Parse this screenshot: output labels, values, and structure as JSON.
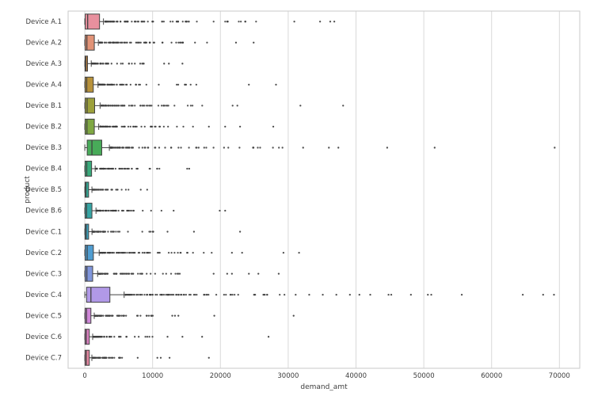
{
  "chart_data": {
    "type": "boxplot",
    "orientation": "horizontal",
    "xlabel": "demand_amt",
    "ylabel": "product",
    "xlim": [
      -2463,
      73000
    ],
    "xticks": [
      0,
      10000,
      20000,
      30000,
      40000,
      50000,
      60000,
      70000
    ],
    "grid": "vertical",
    "styles": {
      "background": "#ffffff",
      "grid_color": "#d9d9d9",
      "border_color": "#cacaca",
      "line_color": "#424242",
      "flier_color": "#3e3e3e",
      "tick_label_color": "#3d3d3d",
      "axis_label_color": "#3d3d3d"
    },
    "rows": [
      {
        "label": "Device A.1",
        "color": "#e8909e",
        "whisker_lo": 0,
        "q1": 60,
        "median": 420,
        "q3": 2170,
        "whisker_hi": 2750,
        "outliers_dense": {
          "from": 3000,
          "to": 16000,
          "n": 75
        },
        "outliers_sparse": {
          "from": 16500,
          "to": 25500,
          "n": 11
        },
        "outliers_far": [
          30900,
          34700,
          36200,
          36800
        ]
      },
      {
        "label": "Device A.2",
        "color": "#e29377",
        "whisker_lo": 0,
        "q1": 50,
        "median": 300,
        "q3": 1400,
        "whisker_hi": 2000,
        "outliers_dense": {
          "from": 2200,
          "to": 11500,
          "n": 65
        },
        "outliers_sparse": {
          "from": 12000,
          "to": 18800,
          "n": 10
        },
        "outliers_far": [
          22300,
          24900
        ]
      },
      {
        "label": "Device A.3",
        "color": "#cd8a40",
        "whisker_lo": 0,
        "q1": 30,
        "median": 160,
        "q3": 400,
        "whisker_hi": 950,
        "outliers_dense": {
          "from": 1050,
          "to": 3600,
          "n": 40
        },
        "outliers_sparse": {
          "from": 3800,
          "to": 8800,
          "n": 12
        },
        "outliers_far": [
          11700,
          12400,
          14400
        ]
      },
      {
        "label": "Device A.4",
        "color": "#b8923b",
        "whisker_lo": 0,
        "q1": 40,
        "median": 280,
        "q3": 1250,
        "whisker_hi": 1950,
        "outliers_dense": {
          "from": 2100,
          "to": 7000,
          "n": 55
        },
        "outliers_sparse": {
          "from": 7500,
          "to": 16600,
          "n": 14
        },
        "outliers_far": [
          24200,
          28200
        ]
      },
      {
        "label": "Device B.1",
        "color": "#9da13c",
        "whisker_lo": 0,
        "q1": 50,
        "median": 330,
        "q3": 1450,
        "whisker_hi": 2250,
        "outliers_dense": {
          "from": 2450,
          "to": 10300,
          "n": 65
        },
        "outliers_sparse": {
          "from": 10800,
          "to": 18800,
          "n": 13
        },
        "outliers_far": [
          21800,
          22500,
          31800,
          38100
        ]
      },
      {
        "label": "Device B.2",
        "color": "#7fa843",
        "whisker_lo": 0,
        "q1": 50,
        "median": 310,
        "q3": 1400,
        "whisker_hi": 2050,
        "outliers_dense": {
          "from": 2250,
          "to": 9000,
          "n": 60
        },
        "outliers_sparse": {
          "from": 9500,
          "to": 16000,
          "n": 13
        },
        "outliers_far": [
          18300,
          20700,
          22900,
          27800
        ]
      },
      {
        "label": "Device B.3",
        "color": "#48ab59",
        "whisker_lo": 0,
        "q1": 350,
        "median": 1050,
        "q3": 2500,
        "whisker_hi": 3620,
        "outliers_dense": {
          "from": 3800,
          "to": 9800,
          "n": 60
        },
        "outliers_sparse": {
          "from": 10300,
          "to": 30000,
          "n": 26
        },
        "outliers_far": [
          32200,
          36000,
          37400,
          44600,
          51600,
          69300
        ]
      },
      {
        "label": "Device B.4",
        "color": "#3aaa7b",
        "whisker_lo": 0,
        "q1": 40,
        "median": 280,
        "q3": 1000,
        "whisker_hi": 1530,
        "outliers_dense": {
          "from": 1700,
          "to": 7100,
          "n": 55
        },
        "outliers_sparse": {
          "from": 7600,
          "to": 11200,
          "n": 8
        },
        "outliers_far": [
          15100,
          15400
        ]
      },
      {
        "label": "Device B.5",
        "color": "#33a794",
        "whisker_lo": 0,
        "q1": 30,
        "median": 160,
        "q3": 560,
        "whisker_hi": 1050,
        "outliers_dense": {
          "from": 1200,
          "to": 3650,
          "n": 40
        },
        "outliers_sparse": {
          "from": 3900,
          "to": 7250,
          "n": 9
        },
        "outliers_far": [
          8250,
          9200
        ]
      },
      {
        "label": "Device B.6",
        "color": "#36a5a4",
        "whisker_lo": 0,
        "q1": 40,
        "median": 260,
        "q3": 1050,
        "whisker_hi": 1650,
        "outliers_dense": {
          "from": 1800,
          "to": 5800,
          "n": 55
        },
        "outliers_sparse": {
          "from": 6200,
          "to": 11500,
          "n": 11
        },
        "outliers_far": [
          13100,
          19900,
          20700
        ]
      },
      {
        "label": "Device C.1",
        "color": "#3ba0bb",
        "whisker_lo": 0,
        "q1": 30,
        "median": 190,
        "q3": 560,
        "whisker_hi": 1060,
        "outliers_dense": {
          "from": 1200,
          "to": 4600,
          "n": 45
        },
        "outliers_sparse": {
          "from": 4900,
          "to": 10500,
          "n": 9
        },
        "outliers_far": [
          12200,
          16100,
          22900
        ]
      },
      {
        "label": "Device C.2",
        "color": "#509dd1",
        "whisker_lo": 0,
        "q1": 50,
        "median": 340,
        "q3": 1260,
        "whisker_hi": 2120,
        "outliers_dense": {
          "from": 2300,
          "to": 10000,
          "n": 65
        },
        "outliers_sparse": {
          "from": 10500,
          "to": 20300,
          "n": 14
        },
        "outliers_far": [
          21700,
          23200,
          29300,
          31600
        ]
      },
      {
        "label": "Device C.3",
        "color": "#8096dc",
        "whisker_lo": 0,
        "q1": 50,
        "median": 300,
        "q3": 1160,
        "whisker_hi": 1890,
        "outliers_dense": {
          "from": 2050,
          "to": 8600,
          "n": 60
        },
        "outliers_sparse": {
          "from": 9100,
          "to": 14900,
          "n": 10
        },
        "outliers_far": [
          19000,
          21000,
          21700,
          24200,
          25600,
          28600
        ]
      },
      {
        "label": "Device C.4",
        "color": "#b199e7",
        "whisker_lo": 0,
        "q1": 260,
        "median": 900,
        "q3": 3700,
        "whisker_hi": 5800,
        "outliers_dense": {
          "from": 6000,
          "to": 17000,
          "n": 70
        },
        "outliers_sparse": {
          "from": 17500,
          "to": 30000,
          "n": 24
        },
        "outliers_far": [
          31100,
          33100,
          35100,
          37100,
          39100,
          40500,
          42100,
          44800,
          45200,
          48100,
          50600,
          51100,
          55600,
          64600,
          67600,
          69200
        ]
      },
      {
        "label": "Device C.5",
        "color": "#cf86d8",
        "whisker_lo": 0,
        "q1": 40,
        "median": 250,
        "q3": 900,
        "whisker_hi": 1390,
        "outliers_dense": {
          "from": 1500,
          "to": 6100,
          "n": 55
        },
        "outliers_sparse": {
          "from": 6500,
          "to": 10500,
          "n": 10
        },
        "outliers_far": [
          12900,
          13300,
          13800,
          19100,
          30800
        ]
      },
      {
        "label": "Device C.6",
        "color": "#dc81c2",
        "whisker_lo": 0,
        "q1": 30,
        "median": 210,
        "q3": 660,
        "whisker_hi": 1160,
        "outliers_dense": {
          "from": 1300,
          "to": 4400,
          "n": 48
        },
        "outliers_sparse": {
          "from": 4700,
          "to": 10500,
          "n": 11
        },
        "outliers_far": [
          12200,
          14400,
          17300,
          27100
        ]
      },
      {
        "label": "Device C.7",
        "color": "#e587a2",
        "whisker_lo": 0,
        "q1": 30,
        "median": 210,
        "q3": 660,
        "whisker_hi": 1040,
        "outliers_dense": {
          "from": 1200,
          "to": 4600,
          "n": 42
        },
        "outliers_sparse": {
          "from": 4800,
          "to": 6500,
          "n": 5
        },
        "outliers_far": [
          7800,
          10700,
          11200,
          12500,
          18300
        ]
      }
    ]
  }
}
